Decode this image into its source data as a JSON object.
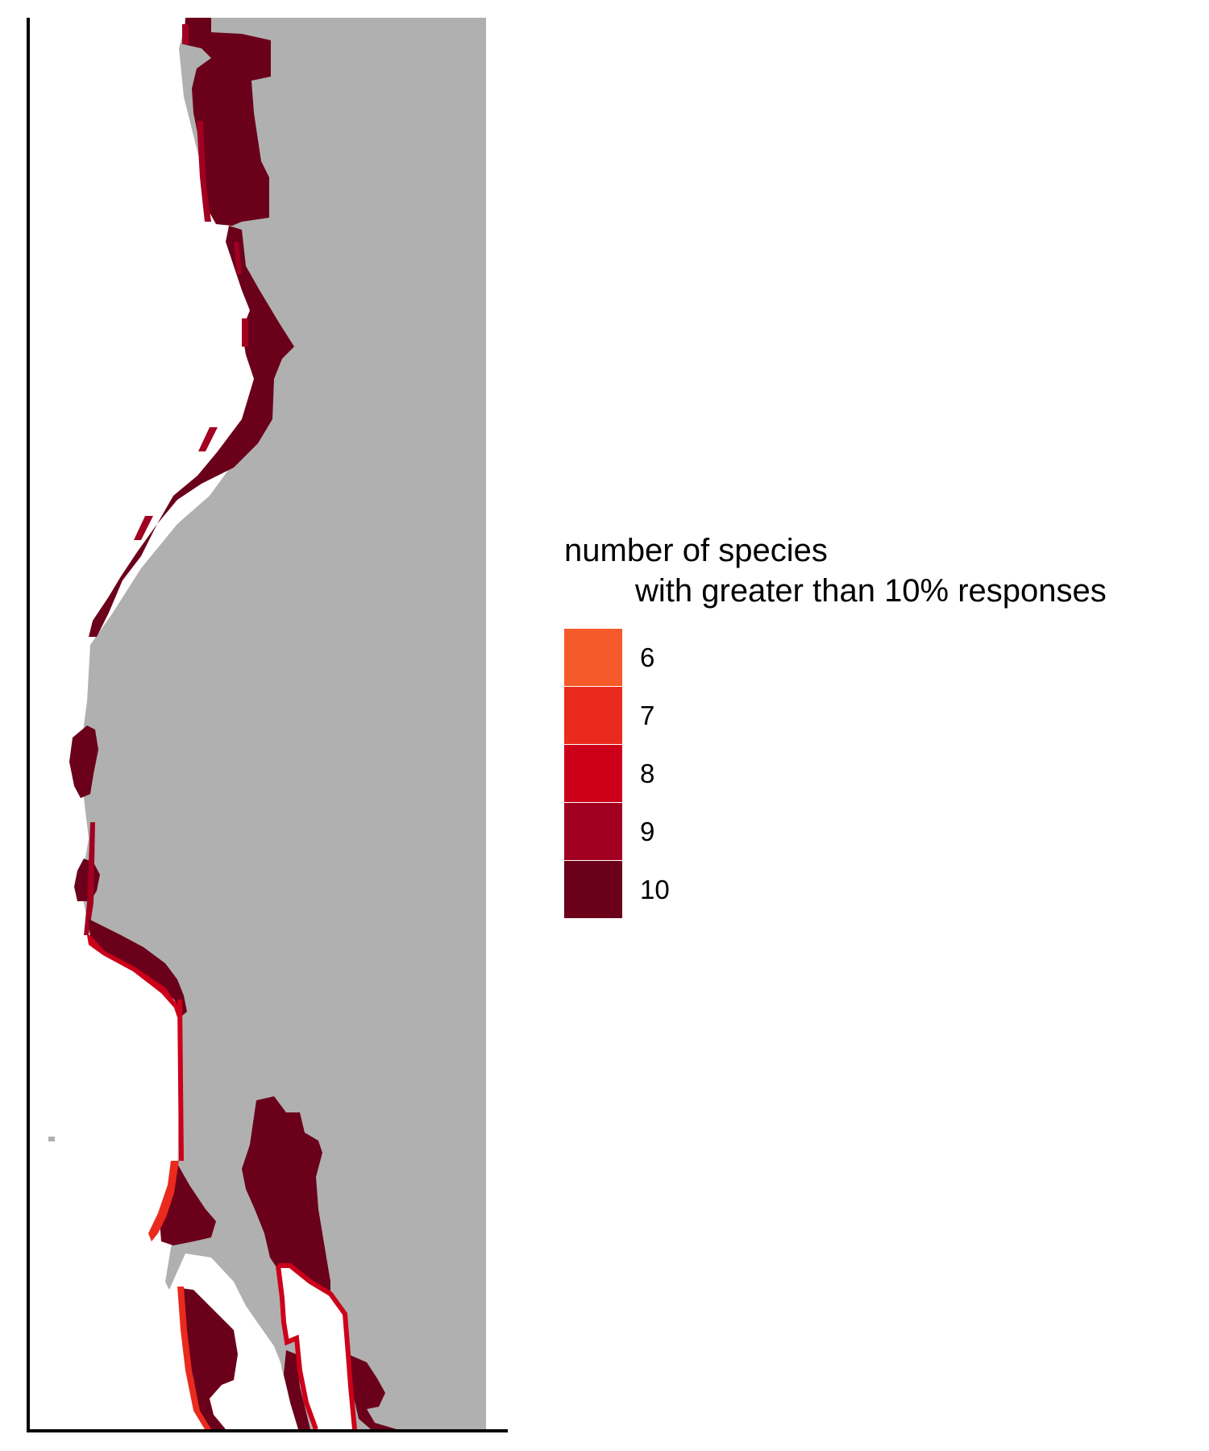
{
  "map": {
    "land_color": "#B0B0B0",
    "background_color": "#FFFFFF",
    "axis_color": "#000000"
  },
  "legend": {
    "title_line1": "number of species",
    "title_line2": "with greater than 10% responses",
    "items": [
      {
        "label": "6",
        "color": "#F65A2A"
      },
      {
        "label": "7",
        "color": "#EB2A1E"
      },
      {
        "label": "8",
        "color": "#CC0019"
      },
      {
        "label": "9",
        "color": "#A20020"
      },
      {
        "label": "10",
        "color": "#6B001B"
      }
    ]
  }
}
